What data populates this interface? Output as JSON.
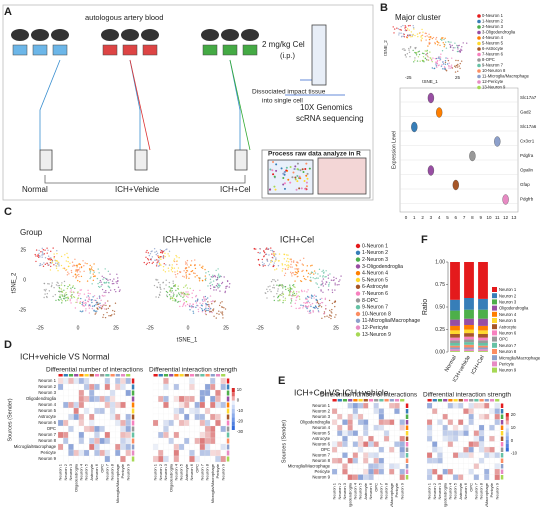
{
  "panels": {
    "A": {
      "letter": "A",
      "blood": "autologous artery blood",
      "dose": "2 mg/kg Cel",
      "route": "(i.p.)",
      "platform": "10X Genomics",
      "assay": "scRNA sequencing",
      "dissociation": [
        "Dissociated impact tissue",
        "into single cell"
      ],
      "analysis": "Process raw data analyze in R",
      "groups": [
        "Normal",
        "ICH+Vehicle",
        "ICH+Cel"
      ]
    },
    "B": {
      "letter": "B",
      "title": "Major cluster",
      "xlabel": "tSNE_1",
      "ylabel": "tSNE_2",
      "ticks": [
        -25,
        25
      ],
      "genes": [
        "Slc17a7",
        "Gad2",
        "Slc17a6",
        "Cx3cr1",
        "Pdgfra",
        "Opalin",
        "Gfap",
        "Pdgfrb"
      ],
      "violin_ylabel": "Expression Level",
      "clusters_x": [
        0,
        1,
        2,
        3,
        4,
        5,
        6,
        7,
        8,
        9,
        10,
        11,
        12,
        13
      ]
    },
    "C": {
      "letter": "C",
      "title": "Group",
      "groups": [
        "Normal",
        "ICH+vehicle",
        "ICH+Cel"
      ],
      "xlabel": "tSNE_1",
      "ylabel": "tSNE_2",
      "ticks": [
        -25,
        0,
        25
      ],
      "clusters": [
        "0-Neuron 1",
        "1-Neuron 2",
        "2-Neuron 3",
        "3-Oligodendroglia",
        "4-Neuron 4",
        "5-Neuron 5",
        "6-Astrocyte",
        "7-Neuron 6",
        "8-OPC",
        "9-Neuron 7",
        "10-Neuron 8",
        "11-Microglia/Macrophage",
        "12-Pericyte",
        "13-Neuron 9"
      ]
    },
    "D": {
      "letter": "D",
      "title": "ICH+vehicle VS Normal",
      "left": "Differential number of interactions",
      "right": "Differential interaction strength",
      "ylabel": "Sources (Sender)",
      "scale": [
        10,
        0,
        -10,
        -20,
        -30
      ]
    },
    "E": {
      "letter": "E",
      "title": "ICH+Cel VS ICH+vehicle",
      "left": "Differential number of interactions",
      "right": "Differential interaction strength",
      "ylabel": "Sources (Sender)",
      "scale": [
        20,
        10,
        0,
        -10
      ]
    }
  },
  "chart_data": {
    "type": "stacked-bar",
    "letter": "F",
    "ylabel": "Ratio",
    "categories": [
      "Normal",
      "ICH+vehicle",
      "ICH+Cel"
    ],
    "ylim": [
      0,
      1
    ],
    "yticks": [
      {
        "value": 0,
        "label": "0.00"
      },
      0.25,
      {
        "value": 0.5,
        "label": "0.50"
      },
      0.75,
      {
        "value": 1,
        "label": "1.00"
      }
    ],
    "series": [
      {
        "name": "Neuron 1",
        "color": "#e41a1c",
        "values": [
          0.42,
          0.4,
          0.41
        ]
      },
      {
        "name": "Neuron 2",
        "color": "#377eb8",
        "values": [
          0.12,
          0.13,
          0.12
        ]
      },
      {
        "name": "Neuron 3",
        "color": "#4daf4a",
        "values": [
          0.1,
          0.1,
          0.1
        ]
      },
      {
        "name": "Oligodendroglia",
        "color": "#984ea3",
        "values": [
          0.07,
          0.07,
          0.08
        ]
      },
      {
        "name": "Neuron 4",
        "color": "#ff7f00",
        "values": [
          0.05,
          0.05,
          0.05
        ]
      },
      {
        "name": "Neuron 5",
        "color": "#ffd92f",
        "values": [
          0.04,
          0.04,
          0.04
        ]
      },
      {
        "name": "Astrocyte",
        "color": "#a65628",
        "values": [
          0.04,
          0.04,
          0.04
        ]
      },
      {
        "name": "Neuron 6",
        "color": "#f781bf",
        "values": [
          0.03,
          0.03,
          0.03
        ]
      },
      {
        "name": "OPC",
        "color": "#999999",
        "values": [
          0.03,
          0.03,
          0.03
        ]
      },
      {
        "name": "Neuron 7",
        "color": "#66c2a5",
        "values": [
          0.03,
          0.03,
          0.03
        ]
      },
      {
        "name": "Neuron 8",
        "color": "#fc8d62",
        "values": [
          0.02,
          0.03,
          0.02
        ]
      },
      {
        "name": "Microglia/Macrophage",
        "color": "#8da0cb",
        "values": [
          0.02,
          0.02,
          0.02
        ]
      },
      {
        "name": "Pericyte",
        "color": "#e78ac3",
        "values": [
          0.02,
          0.02,
          0.02
        ]
      },
      {
        "name": "Neuron 9",
        "color": "#a6d854",
        "values": [
          0.01,
          0.01,
          0.01
        ]
      }
    ]
  }
}
